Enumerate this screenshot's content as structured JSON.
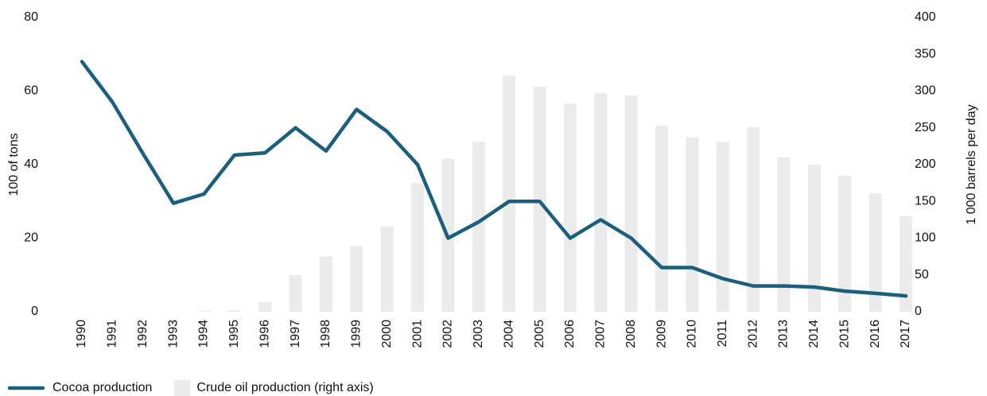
{
  "chart_data": {
    "type": "combo",
    "categories": [
      "1990",
      "1991",
      "1992",
      "1993",
      "1994",
      "1995",
      "1996",
      "1997",
      "1998",
      "1999",
      "2000",
      "2001",
      "2002",
      "2003",
      "2004",
      "2005",
      "2006",
      "2007",
      "2008",
      "2009",
      "2010",
      "2011",
      "2012",
      "2013",
      "2014",
      "2015",
      "2016",
      "2017"
    ],
    "series": [
      {
        "name": "Cocoa production",
        "type": "line",
        "color": "#1b5f7e",
        "axis": "y",
        "values": [
          68,
          57,
          43,
          29.5,
          32,
          42.6,
          43.2,
          50,
          43.7,
          55,
          49,
          40,
          20,
          24.4,
          30,
          30,
          20,
          25,
          20,
          12,
          12,
          9,
          7,
          7,
          6.7,
          5.6,
          5,
          4.3
        ]
      },
      {
        "name": "Crude oil production (right axis)",
        "type": "bar",
        "color": "#ebebeb",
        "axis": "y2",
        "values": [
          0,
          0,
          0,
          0,
          1,
          2,
          13,
          50,
          75,
          89,
          116,
          175,
          208,
          231,
          321,
          306,
          283,
          297,
          294,
          253,
          237,
          231,
          251,
          210,
          200,
          185,
          161,
          130
        ]
      }
    ],
    "ylabel": "100 of tons",
    "y2label": "1 000 barrels per day",
    "ylim": [
      0,
      80
    ],
    "yticks": [
      0,
      20,
      40,
      60,
      80
    ],
    "y2lim": [
      0,
      400
    ],
    "y2ticks": [
      0,
      50,
      100,
      150,
      200,
      250,
      300,
      350,
      400
    ],
    "grid": false,
    "legend": "bottom-left"
  }
}
